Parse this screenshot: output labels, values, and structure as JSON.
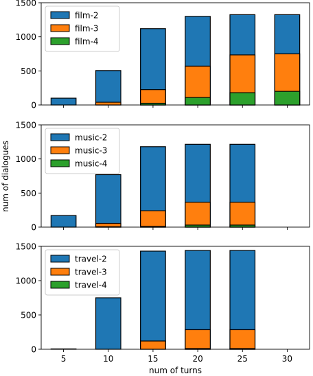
{
  "chart_data": [
    {
      "type": "bar",
      "stacked": false,
      "overlapping": true,
      "x": [
        5,
        10,
        15,
        20,
        25,
        30
      ],
      "ylim": [
        0,
        1500
      ],
      "yticks": [
        0,
        500,
        1000,
        1500
      ],
      "legend": "top-left",
      "series": [
        {
          "name": "film-2",
          "color": "#1f77b4",
          "values": [
            100,
            505,
            1120,
            1300,
            1325,
            1325
          ]
        },
        {
          "name": "film-3",
          "color": "#ff7f0e",
          "values": [
            0,
            40,
            225,
            570,
            735,
            750
          ]
        },
        {
          "name": "film-4",
          "color": "#2ca02c",
          "values": [
            0,
            0,
            25,
            110,
            180,
            200
          ]
        }
      ]
    },
    {
      "type": "bar",
      "stacked": false,
      "overlapping": true,
      "x": [
        5,
        10,
        15,
        20,
        25,
        30
      ],
      "ylim": [
        0,
        1500
      ],
      "yticks": [
        0,
        500,
        1000,
        1500
      ],
      "legend": "top-left",
      "series": [
        {
          "name": "music-2",
          "color": "#1f77b4",
          "values": [
            170,
            770,
            1180,
            1215,
            1215,
            0
          ]
        },
        {
          "name": "music-3",
          "color": "#ff7f0e",
          "values": [
            0,
            55,
            240,
            365,
            365,
            0
          ]
        },
        {
          "name": "music-4",
          "color": "#2ca02c",
          "values": [
            0,
            5,
            10,
            30,
            30,
            0
          ]
        }
      ]
    },
    {
      "type": "bar",
      "stacked": false,
      "overlapping": true,
      "x": [
        5,
        10,
        15,
        20,
        25,
        30
      ],
      "ylim": [
        0,
        1500
      ],
      "yticks": [
        0,
        500,
        1000,
        1500
      ],
      "xlabel": "num of turns",
      "legend": "top-left",
      "series": [
        {
          "name": "travel-2",
          "color": "#1f77b4",
          "values": [
            5,
            750,
            1430,
            1440,
            1440,
            0
          ]
        },
        {
          "name": "travel-3",
          "color": "#ff7f0e",
          "values": [
            0,
            0,
            120,
            285,
            285,
            0
          ]
        },
        {
          "name": "travel-4",
          "color": "#2ca02c",
          "values": [
            0,
            0,
            0,
            10,
            10,
            0
          ]
        }
      ]
    }
  ],
  "shared_ylabel": "num of dialogues"
}
